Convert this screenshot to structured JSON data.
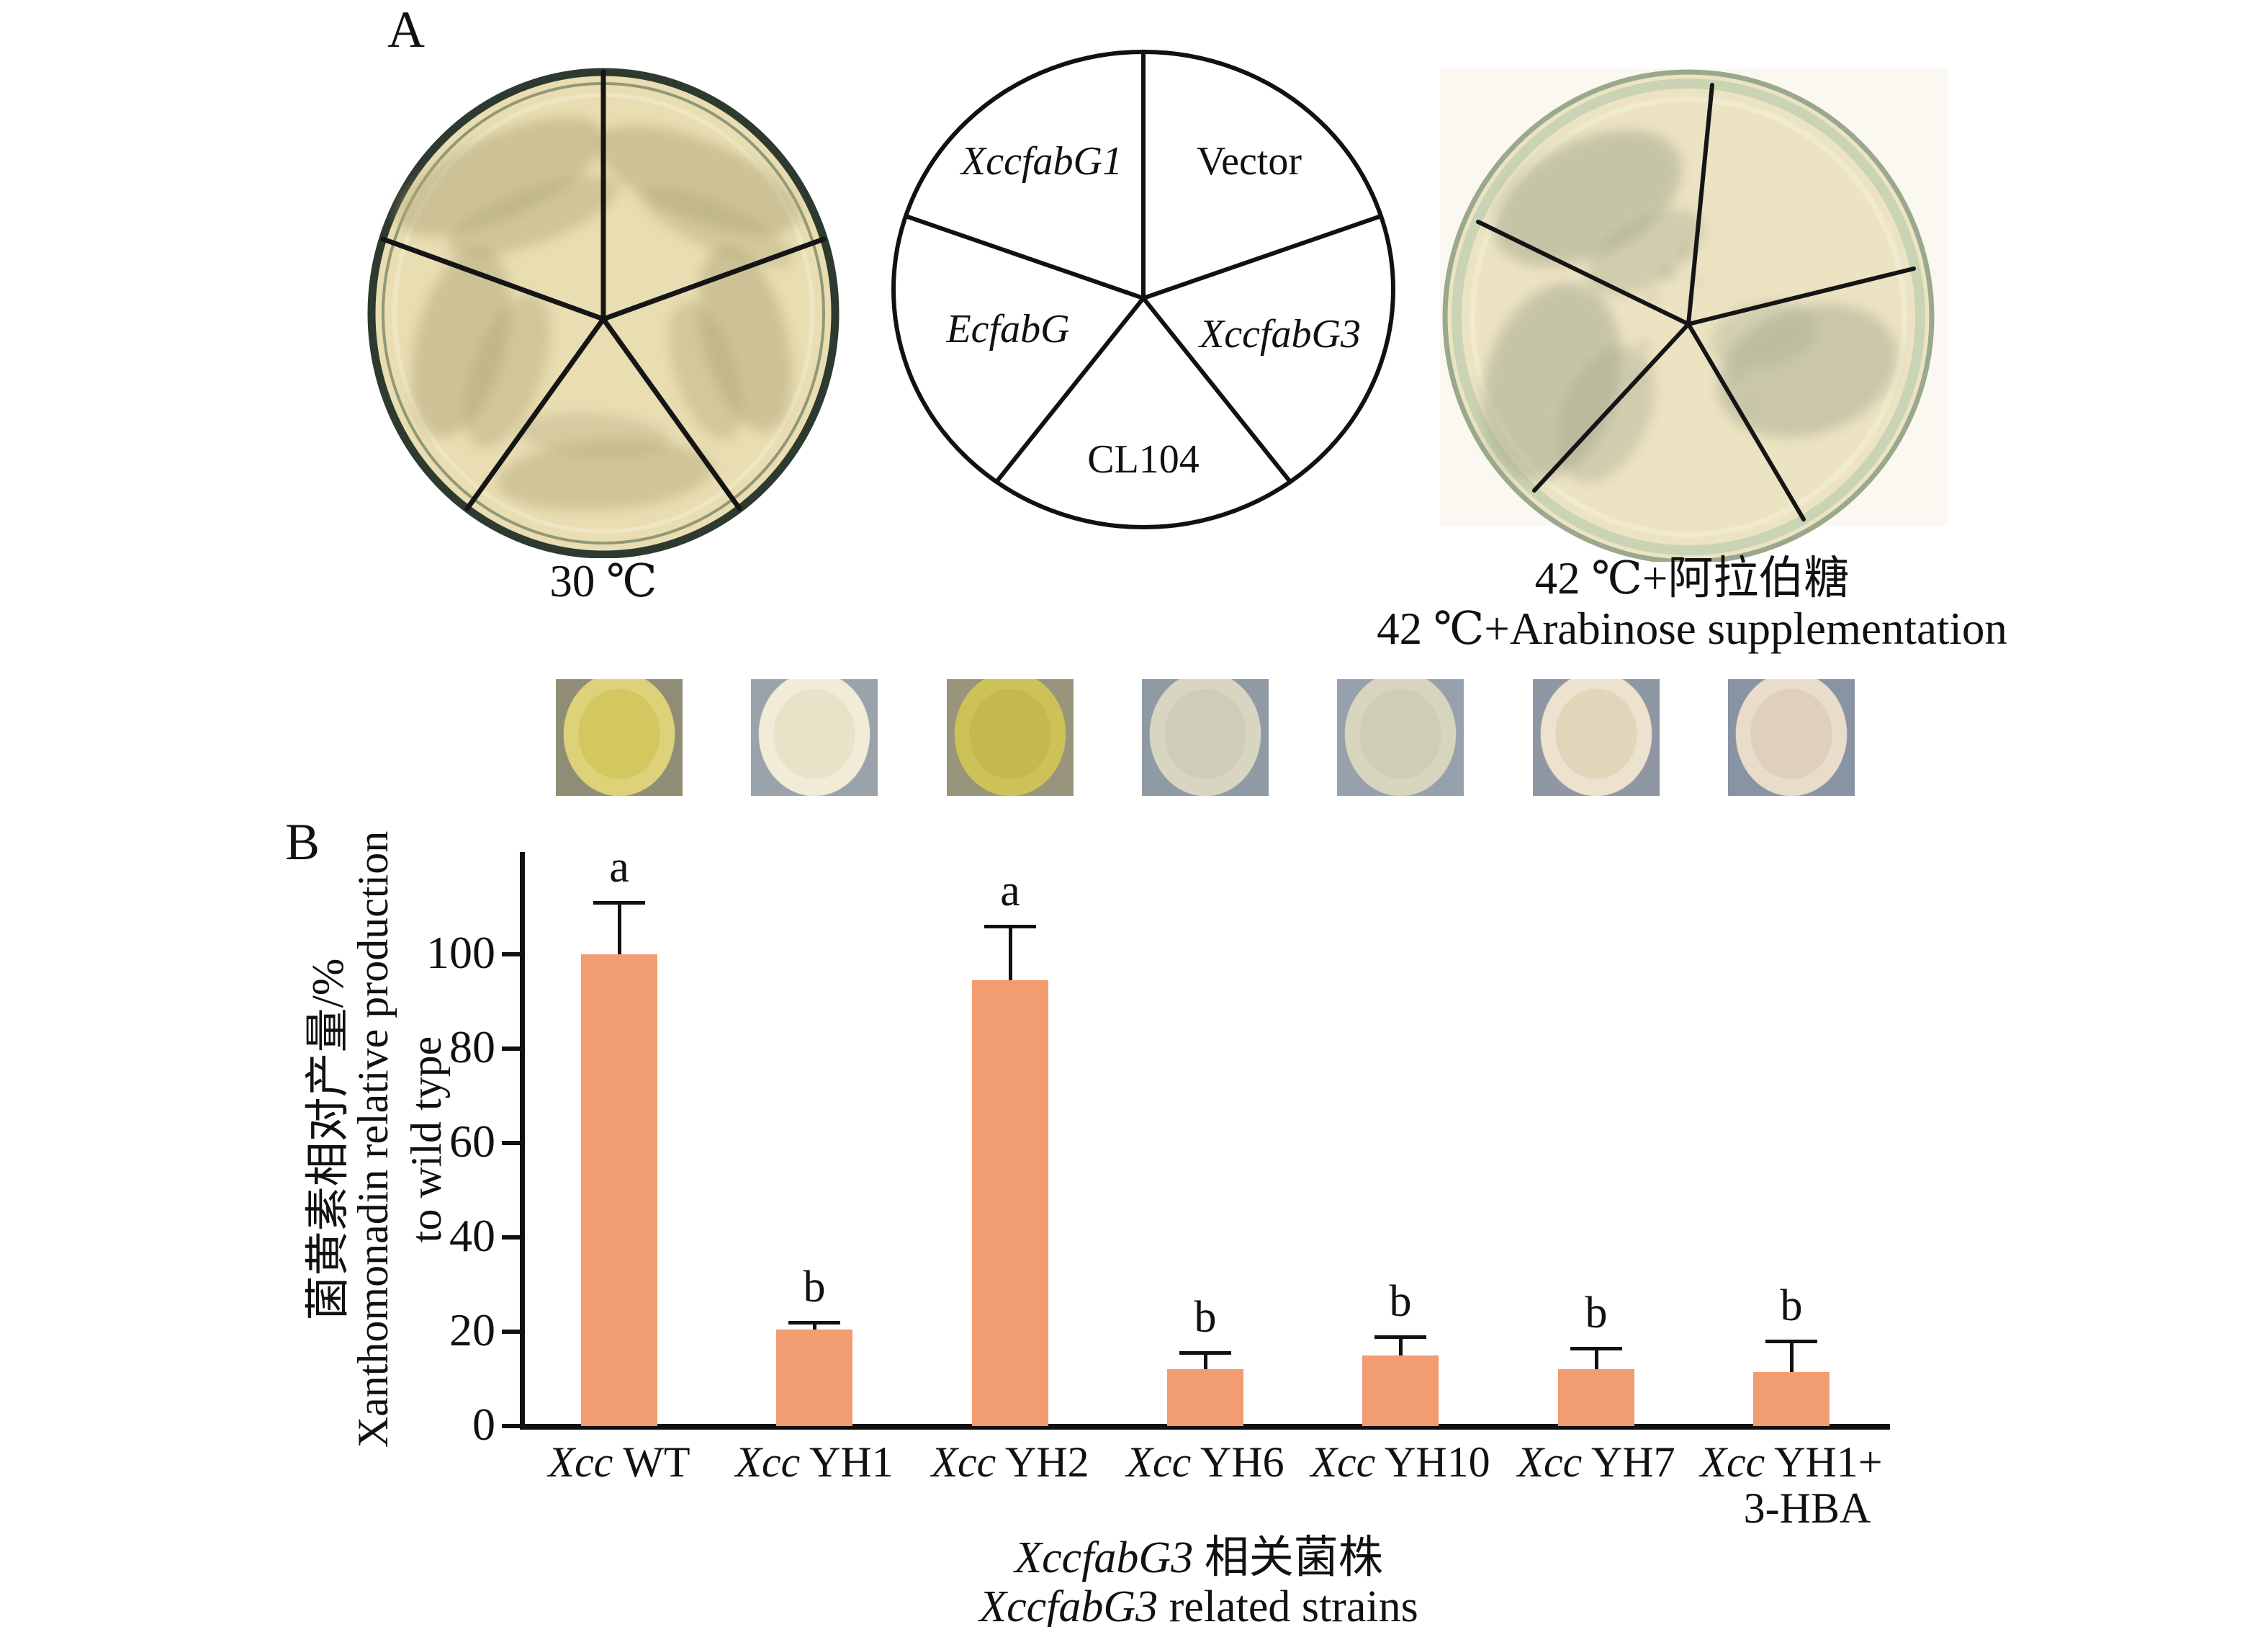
{
  "panel_a": {
    "label": "A",
    "schematic": {
      "sectors": [
        {
          "name": "XccfabG1",
          "italic": true
        },
        {
          "name": "Vector",
          "italic": false
        },
        {
          "name": "EcfabG",
          "italic": true
        },
        {
          "name": "XccfabG3",
          "italic": true
        },
        {
          "name": "CL104",
          "italic": false
        }
      ]
    },
    "left_dish_caption": "30 ℃",
    "right_dish_caption_zh": "42 ℃+阿拉伯糖",
    "right_dish_caption_en": "42 ℃+Arabinose supplementation",
    "dish_colors": {
      "left_agar": "#e9ddb2",
      "left_rim": "#2e3a30",
      "left_streak": "#b1a87a",
      "right_agar": "#ece3c2",
      "right_rim": "#9aa98d",
      "right_ring": "#c6d2b3",
      "right_streak": "#a7ab92"
    }
  },
  "spots": {
    "tiles": [
      {
        "bg": "#8f8d76",
        "halo": "#ddd27a",
        "core": "#d3c75f"
      },
      {
        "bg": "#9aa2aa",
        "halo": "#f0ecd8",
        "core": "#e9e2c8"
      },
      {
        "bg": "#99947c",
        "halo": "#ccc257",
        "core": "#c4b84e"
      },
      {
        "bg": "#909aa5",
        "halo": "#d8d5c2",
        "core": "#cfccb8"
      },
      {
        "bg": "#97a0ad",
        "halo": "#d8d5be",
        "core": "#d0cdb6"
      },
      {
        "bg": "#8e97a3",
        "halo": "#ece2cd",
        "core": "#e2d6ba"
      },
      {
        "bg": "#8893a3",
        "halo": "#e9dcca",
        "core": "#dfd0bc"
      }
    ]
  },
  "panel_b": {
    "label": "B"
  },
  "chart_data": {
    "type": "bar",
    "categories": [
      "Xcc WT",
      "Xcc YH1",
      "Xcc YH2",
      "Xcc YH6",
      "Xcc YH10",
      "Xcc YH7",
      "Xcc YH1+ 3-HBA"
    ],
    "categories_runs": [
      [
        {
          "t": "Xcc",
          "i": true
        },
        {
          "t": " WT",
          "i": false
        }
      ],
      [
        {
          "t": "Xcc",
          "i": true
        },
        {
          "t": " YH1",
          "i": false
        }
      ],
      [
        {
          "t": "Xcc",
          "i": true
        },
        {
          "t": " YH2",
          "i": false
        }
      ],
      [
        {
          "t": "Xcc",
          "i": true
        },
        {
          "t": " YH6",
          "i": false
        }
      ],
      [
        {
          "t": "Xcc",
          "i": true
        },
        {
          "t": " YH10",
          "i": false
        }
      ],
      [
        {
          "t": "Xcc",
          "i": true
        },
        {
          "t": " YH7",
          "i": false
        }
      ],
      [
        {
          "t": "Xcc",
          "i": true
        },
        {
          "t": " YH1+",
          "i": false
        }
      ]
    ],
    "last_category_line2": "3-HBA",
    "values": [
      100,
      20.5,
      94.5,
      12,
      15,
      12,
      11.5
    ],
    "errors_upper": [
      11,
      1.5,
      11.5,
      3.5,
      4,
      4.5,
      6.5
    ],
    "sig_letters": [
      "a",
      "b",
      "a",
      "b",
      "b",
      "b",
      "b"
    ],
    "yticks": [
      0,
      20,
      40,
      60,
      80,
      100
    ],
    "ylim": [
      0,
      120
    ],
    "grid": false,
    "legend": null,
    "bar_color": "#F29C71",
    "ylabel_zh": "菌黄素相对产量/%",
    "ylabel_en_line1": "Xanthomonadin relative production",
    "ylabel_en_line2": "to wild type",
    "xlabel_runs_zh": [
      {
        "t": "XccfabG3",
        "i": true
      },
      {
        "t": " 相关菌株",
        "i": false
      }
    ],
    "xlabel_runs_en": [
      {
        "t": "XccfabG3",
        "i": true
      },
      {
        "t": " related strains",
        "i": false
      }
    ]
  }
}
